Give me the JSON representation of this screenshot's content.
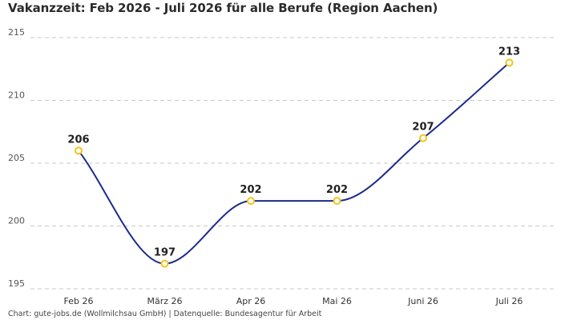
{
  "title": "Vakanzzeit: Feb 2026 - Juli 2026 für alle Berufe (Region Aachen)",
  "footer": "Chart: gute-jobs.de (Wollmilchsau GmbH) | Datenquelle: Bundesagentur für Arbeit",
  "colors": {
    "line": "#1a2a8a",
    "marker_stroke": "#f2c318",
    "marker_fill": "#ffffff",
    "grid": "#c8c8c8"
  },
  "chart_data": {
    "type": "line",
    "categories": [
      "Feb 26",
      "März 26",
      "Apr 26",
      "Mai 26",
      "Juni 26",
      "Juli 26"
    ],
    "values": [
      206,
      197,
      202,
      202,
      207,
      213
    ],
    "data_labels": [
      "206",
      "197",
      "202",
      "202",
      "207",
      "213"
    ],
    "yticks": [
      195,
      200,
      205,
      210,
      215
    ],
    "ylim": [
      195,
      215
    ],
    "grid": "horizontal dashed",
    "xlabel": "",
    "ylabel": ""
  }
}
